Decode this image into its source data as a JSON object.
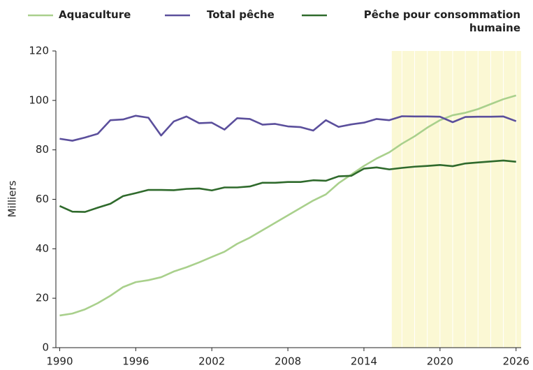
{
  "chart_data": {
    "type": "line",
    "y_label": "Milliers",
    "x": [
      1990,
      1991,
      1992,
      1993,
      1994,
      1995,
      1996,
      1997,
      1998,
      1999,
      2000,
      2001,
      2002,
      2003,
      2004,
      2005,
      2006,
      2007,
      2008,
      2009,
      2010,
      2011,
      2012,
      2013,
      2014,
      2015,
      2016,
      2017,
      2018,
      2019,
      2020,
      2021,
      2022,
      2023,
      2024,
      2025,
      2026
    ],
    "series": [
      {
        "name": "Aquaculture",
        "color": "#a9d08c",
        "values": [
          13,
          13.8,
          15.5,
          18,
          21,
          24.5,
          26.5,
          27.3,
          28.5,
          30.8,
          32.5,
          34.5,
          36.7,
          38.8,
          42,
          44.5,
          47.5,
          50.5,
          53.5,
          56.5,
          59.5,
          62,
          66.5,
          70,
          73.5,
          76.5,
          79,
          82.5,
          85.5,
          89,
          92,
          94,
          95,
          96.5,
          98.5,
          100.5,
          102
        ]
      },
      {
        "name": "Total pêche",
        "color": "#5b4f9c",
        "values": [
          84.5,
          83.7,
          85,
          86.5,
          92,
          92.3,
          93.8,
          93,
          85.8,
          91.5,
          93.5,
          90.8,
          91,
          88.2,
          92.8,
          92.5,
          90.2,
          90.5,
          89.5,
          89.2,
          87.8,
          92,
          89.3,
          90.3,
          91,
          92.5,
          92,
          93.6,
          93.5,
          93.5,
          93.4,
          91.2,
          93.3,
          93.4,
          93.4,
          93.5,
          91.6
        ]
      },
      {
        "name": "Pêche pour consommation humaine",
        "color": "#2f6a2c",
        "values": [
          57.3,
          55,
          54.9,
          56.6,
          58.2,
          61.3,
          62.5,
          63.8,
          63.8,
          63.7,
          64.2,
          64.4,
          63.6,
          64.8,
          64.8,
          65.2,
          66.7,
          66.7,
          67,
          67,
          67.7,
          67.5,
          69.3,
          69.5,
          72.4,
          72.9,
          72.1,
          72.7,
          73.2,
          73.5,
          73.9,
          73.4,
          74.5,
          74.9,
          75.3,
          75.7,
          75.2
        ]
      }
    ],
    "xlim": [
      1989.7,
      2026.4
    ],
    "xticks": [
      1990,
      1996,
      2002,
      2008,
      2014,
      2020,
      2026
    ],
    "ylim": [
      0,
      120
    ],
    "yticks": [
      0,
      20,
      40,
      60,
      80,
      100,
      120
    ],
    "shaded_range": [
      2016.2,
      2026.4
    ],
    "shade_color": "#fbf8d4"
  }
}
